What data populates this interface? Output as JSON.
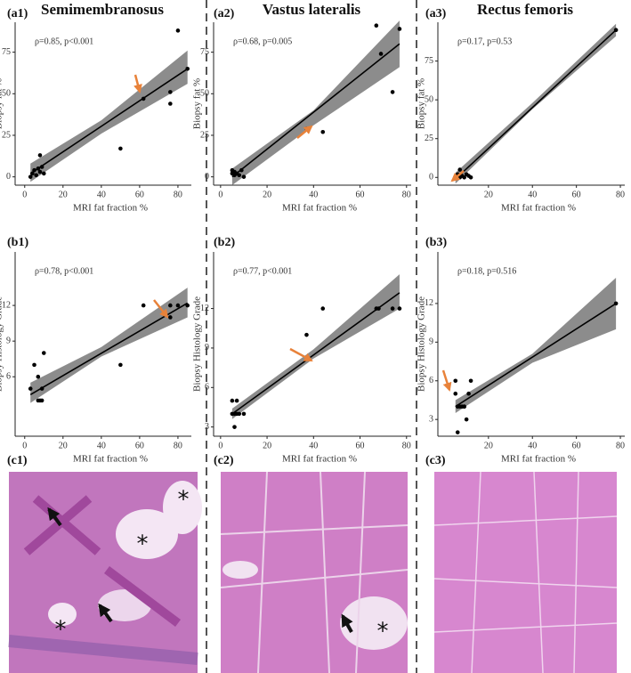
{
  "columns": [
    "Semimembranosus",
    "Vastus lateralis",
    "Rectus femoris"
  ],
  "chart_data": [
    {
      "type": "scatter",
      "label": "(a1)",
      "annotation": "ρ=0.85, p<0.001",
      "xlabel": "MRI fat fraction %",
      "ylabel": "Biopsy fat %",
      "x": [
        3,
        4,
        5,
        6,
        7,
        8,
        8,
        9,
        10,
        50,
        62,
        76,
        76,
        80,
        85
      ],
      "y": [
        0,
        2,
        4,
        1,
        5,
        13,
        3,
        6,
        2,
        17,
        47,
        51,
        44,
        88,
        65
      ],
      "fit": {
        "x": [
          3,
          85
        ],
        "y": [
          2,
          65
        ]
      },
      "band": {
        "x": [
          3,
          40,
          85
        ],
        "lower": [
          -3,
          26,
          56
        ],
        "upper": [
          8,
          34,
          76
        ]
      },
      "xlim": [
        -5,
        87
      ],
      "ylim": [
        -5,
        93
      ],
      "xticks": [
        0,
        20,
        40,
        60,
        80
      ],
      "yticks": [
        0,
        25,
        50,
        75
      ],
      "color": "#000000",
      "band_color": "#8c8c8c"
    },
    {
      "type": "scatter",
      "label": "(a2)",
      "annotation": "ρ=0.68, p=0.005",
      "xlabel": "MRI fat fraction %",
      "ylabel": "Biopsy fat %",
      "x": [
        5,
        5,
        6,
        6,
        7,
        8,
        9,
        10,
        37,
        44,
        67,
        69,
        74,
        77
      ],
      "y": [
        2,
        4,
        1,
        3,
        2,
        1,
        4,
        0,
        29,
        27,
        91,
        74,
        51,
        89
      ],
      "fit": {
        "x": [
          5,
          77
        ],
        "y": [
          0,
          80
        ]
      },
      "band": {
        "x": [
          5,
          40,
          77
        ],
        "lower": [
          -5,
          31,
          66
        ],
        "upper": [
          5,
          40,
          94
        ]
      },
      "xlim": [
        -3,
        82
      ],
      "ylim": [
        -5,
        93
      ],
      "xticks": [
        0,
        20,
        40,
        60,
        80
      ],
      "yticks": [
        0,
        25,
        50,
        75
      ],
      "color": "#000000",
      "band_color": "#8c8c8c"
    },
    {
      "type": "scatter",
      "label": "(a3)",
      "annotation": "ρ=0.17, p=0.53",
      "xlabel": "MRI fat fraction %",
      "ylabel": "Biopsy fat %",
      "x": [
        5,
        6,
        6,
        7,
        7,
        8,
        9,
        10,
        11,
        12,
        78
      ],
      "y": [
        0,
        1,
        2,
        0,
        5,
        1,
        0,
        2,
        1,
        0,
        95
      ],
      "fit": {
        "x": [
          5,
          78
        ],
        "y": [
          -1,
          95
        ]
      },
      "band": {
        "x": [
          5,
          40,
          78
        ],
        "lower": [
          -4,
          44,
          91
        ],
        "upper": [
          3,
          48,
          99
        ]
      },
      "xlim": [
        -3,
        82
      ],
      "ylim": [
        -5,
        100
      ],
      "xticks": [
        20,
        40,
        60,
        80
      ],
      "yticks": [
        0,
        25,
        50,
        75
      ],
      "color": "#000000",
      "band_color": "#8c8c8c"
    },
    {
      "type": "scatter",
      "label": "(b1)",
      "annotation": "ρ=0.78, p<0.001",
      "xlabel": "MRI fat fraction %",
      "ylabel": "Biopsy Histology Grade",
      "x": [
        3,
        5,
        7,
        7,
        8,
        9,
        9,
        10,
        50,
        62,
        76,
        76,
        80,
        85
      ],
      "y": [
        5,
        7,
        6,
        4,
        4,
        4,
        5,
        8,
        7,
        12,
        12,
        11,
        12,
        12
      ],
      "fit": {
        "x": [
          3,
          85
        ],
        "y": [
          4.5,
          12.2
        ]
      },
      "band": {
        "x": [
          3,
          40,
          85
        ],
        "lower": [
          3.8,
          7.7,
          11
        ],
        "upper": [
          5.5,
          8.5,
          13.5
        ]
      },
      "xlim": [
        -5,
        87
      ],
      "ylim": [
        1,
        16.5
      ],
      "xticks": [
        0,
        20,
        40,
        60,
        80
      ],
      "yticks": [
        6,
        9,
        12
      ],
      "color": "#000000",
      "band_color": "#8c8c8c"
    },
    {
      "type": "scatter",
      "label": "(b2)",
      "annotation": "ρ=0.77, p<0.001",
      "xlabel": "MRI fat fraction %",
      "ylabel": "Biopsy Histology Grade",
      "x": [
        5,
        5,
        6,
        6,
        7,
        7,
        8,
        10,
        37,
        44,
        67,
        68,
        74,
        77
      ],
      "y": [
        4,
        5,
        3,
        4,
        5,
        4,
        4,
        4,
        10,
        12,
        12,
        12,
        12,
        12
      ],
      "fit": {
        "x": [
          5,
          77
        ],
        "y": [
          4,
          13.2
        ]
      },
      "band": {
        "x": [
          5,
          40,
          77
        ],
        "lower": [
          3.6,
          8.2,
          12
        ],
        "upper": [
          4.4,
          8.9,
          14.6
        ]
      },
      "xlim": [
        -3,
        82
      ],
      "ylim": [
        2.3,
        16.3
      ],
      "xticks": [
        0,
        20,
        40,
        60,
        80
      ],
      "yticks": [
        3,
        6,
        9,
        12
      ],
      "color": "#000000",
      "band_color": "#8c8c8c"
    },
    {
      "type": "scatter",
      "label": "(b3)",
      "annotation": "ρ=0.18, p=0.516",
      "xlabel": "MRI fat fraction %",
      "ylabel": "Biopsy Histology Grade",
      "x": [
        5,
        5,
        6,
        6,
        7,
        8,
        9,
        9,
        10,
        11,
        12,
        78
      ],
      "y": [
        6,
        5,
        4,
        2,
        4,
        4,
        4,
        4,
        3,
        5,
        6,
        12
      ],
      "fit": {
        "x": [
          5,
          78
        ],
        "y": [
          4,
          12
        ]
      },
      "band": {
        "x": [
          5,
          40,
          78
        ],
        "lower": [
          3.5,
          7.4,
          10
        ],
        "upper": [
          4.5,
          8.1,
          14
        ]
      },
      "xlim": [
        -3,
        82
      ],
      "ylim": [
        1.7,
        16
      ],
      "xticks": [
        20,
        40,
        60,
        80
      ],
      "yticks": [
        3,
        6,
        9,
        12
      ],
      "color": "#000000",
      "band_color": "#8c8c8c"
    }
  ],
  "histology": [
    {
      "label": "(c1)",
      "marks": [
        "*",
        "*",
        "*"
      ]
    },
    {
      "label": "(c2)",
      "marks": [
        "*"
      ]
    },
    {
      "label": "(c3)",
      "marks": []
    }
  ]
}
